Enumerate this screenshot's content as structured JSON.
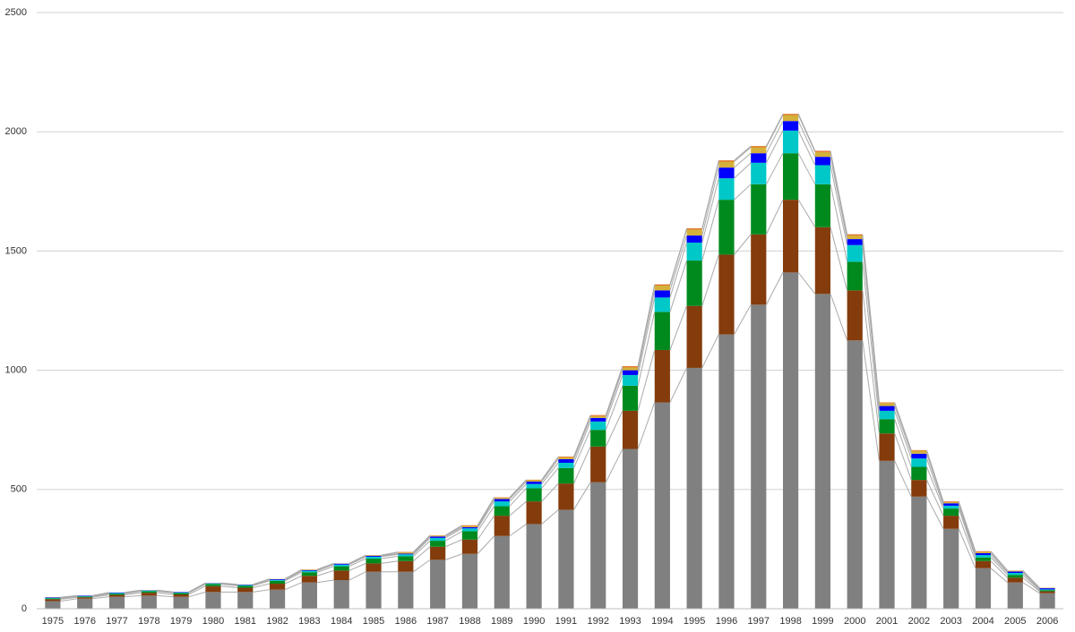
{
  "chart_data": {
    "type": "stacked-bar",
    "categories": [
      "1975",
      "1976",
      "1977",
      "1978",
      "1979",
      "1980",
      "1981",
      "1982",
      "1983",
      "1984",
      "1985",
      "1986",
      "1987",
      "1988",
      "1989",
      "1990",
      "1991",
      "1992",
      "1993",
      "1994",
      "1995",
      "1996",
      "1997",
      "1998",
      "1999",
      "2000",
      "2001",
      "2002",
      "2003",
      "2004",
      "2005",
      "2006"
    ],
    "series": [
      {
        "color": "#808080",
        "values": [
          32,
          42,
          50,
          55,
          50,
          70,
          70,
          80,
          110,
          120,
          155,
          155,
          205,
          230,
          305,
          355,
          415,
          530,
          670,
          865,
          1010,
          1150,
          1275,
          1410,
          1320,
          1125,
          620,
          470,
          335,
          170,
          110,
          65
        ]
      },
      {
        "color": "#843c0c",
        "values": [
          8,
          6,
          8,
          12,
          10,
          25,
          18,
          25,
          28,
          40,
          35,
          45,
          55,
          60,
          85,
          95,
          110,
          150,
          160,
          220,
          260,
          335,
          295,
          305,
          280,
          210,
          115,
          70,
          55,
          30,
          20,
          8
        ]
      },
      {
        "color": "#008a1e",
        "values": [
          3,
          3,
          5,
          6,
          6,
          8,
          8,
          12,
          15,
          18,
          20,
          20,
          25,
          35,
          40,
          55,
          65,
          70,
          105,
          160,
          190,
          230,
          210,
          195,
          180,
          120,
          60,
          55,
          30,
          15,
          12,
          5
        ]
      },
      {
        "color": "#00c8c8",
        "values": [
          2,
          2,
          3,
          3,
          2,
          3,
          3,
          4,
          6,
          7,
          8,
          8,
          12,
          12,
          20,
          18,
          22,
          35,
          45,
          60,
          75,
          90,
          90,
          95,
          80,
          70,
          35,
          35,
          12,
          10,
          8,
          3
        ]
      },
      {
        "color": "#0000ff",
        "values": [
          2,
          2,
          2,
          1,
          2,
          1,
          2,
          3,
          3,
          4,
          4,
          3,
          6,
          5,
          10,
          10,
          15,
          15,
          20,
          30,
          30,
          45,
          40,
          40,
          35,
          25,
          20,
          20,
          10,
          8,
          6,
          5
        ]
      },
      {
        "color": "#d4b13a",
        "values": [
          1,
          0,
          0,
          1,
          0,
          1,
          1,
          1,
          2,
          1,
          2,
          5,
          4,
          5,
          5,
          6,
          8,
          8,
          12,
          20,
          25,
          25,
          25,
          25,
          20,
          15,
          12,
          12,
          5,
          5,
          3,
          1
        ]
      },
      {
        "color": "#e07020",
        "values": [
          0,
          0,
          0,
          0,
          0,
          0,
          0,
          0,
          1,
          0,
          1,
          2,
          1,
          3,
          2,
          2,
          3,
          4,
          5,
          5,
          5,
          5,
          5,
          5,
          5,
          5,
          3,
          3,
          3,
          3,
          1,
          1
        ]
      }
    ],
    "ylim": [
      0,
      2500
    ],
    "yticks": [
      0,
      500,
      1000,
      1500,
      2000,
      2500
    ],
    "grid": true,
    "series_lines": true
  }
}
